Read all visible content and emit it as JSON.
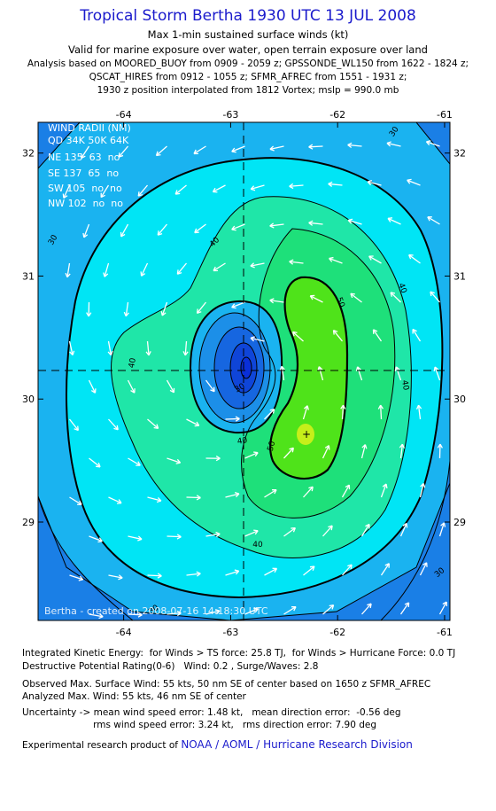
{
  "header": {
    "title": "Tropical Storm Bertha 1930 UTC 13 JUL 2008",
    "line1": "Max 1-min sustained surface winds (kt)",
    "line2": "Valid for marine exposure over water, open terrain exposure over land",
    "line3": "Analysis based on  MOORED_BUOY from 0909 - 2059 z;  GPSSONDE_WL150 from 1622 - 1824 z;",
    "line4": "QSCAT_HIRES from 0912 - 1055 z;  SFMR_AFREC from 1551 - 1931 z;",
    "line5": "1930 z position interpolated from 1812 Vortex; mslp = 990.0 mb"
  },
  "wind_radii": {
    "title": "WIND RADII (NM)",
    "header": "QD 34K 50K 64K",
    "rows": [
      "NE 135  63  no",
      "SE 137  65  no",
      "SW 105  no  no",
      "NW 102  no  no"
    ]
  },
  "watermark": "Bertha - created on 2008-07-16 14:18:30 UTC",
  "chart_data": {
    "type": "heatmap",
    "x_ticks": [
      "-64",
      "-63",
      "-62",
      "-61"
    ],
    "y_ticks": [
      "32",
      "31",
      "30",
      "29"
    ],
    "xlim": [
      -64.8,
      -60.95
    ],
    "ylim": [
      28.2,
      32.25
    ],
    "center": {
      "lon": -62.98,
      "lat": 30.14
    },
    "max_wind_marker": {
      "lon": -62.35,
      "lat": 29.65,
      "label": "+"
    },
    "contour_levels": [
      30,
      40,
      50
    ],
    "contour_labels": [
      "30",
      "30",
      "30",
      "30",
      "40",
      "40",
      "40",
      "40",
      "40",
      "50",
      "50",
      "30",
      "40"
    ],
    "colors": {
      "ocean_dark": "#1a7fe6",
      "band30": "#1ab3f0",
      "band35": "#00e5f5",
      "band40": "#1fe6a8",
      "band45": "#1ee07a",
      "band50": "#4fe31a",
      "band55": "#c6ef1a",
      "eye_blue": "#0a2fd8"
    }
  },
  "footer": {
    "ike": "Integrated Kinetic Energy:  for Winds > TS force: 25.8 TJ,  for Winds > Hurricane Force: 0.0 TJ",
    "dpr": "Destructive Potential Rating(0-6)   Wind: 0.2 , Surge/Waves: 2.8",
    "obs": "Observed Max. Surface Wind: 55 kts, 50 nm SE of center based on 1650 z SFMR_AFREC",
    "ana": "Analyzed Max. Wind: 55 kts, 46 nm SE of center",
    "unc1": "Uncertainty -> mean wind speed error: 1.48 kt,   mean direction error:  -0.56 deg",
    "unc2": "                        rms wind speed error: 3.24 kt,   rms direction error: 7.90 deg",
    "credit_prefix": "Experimental research product of ",
    "credit_link": "NOAA / AOML / Hurricane Research Division"
  }
}
